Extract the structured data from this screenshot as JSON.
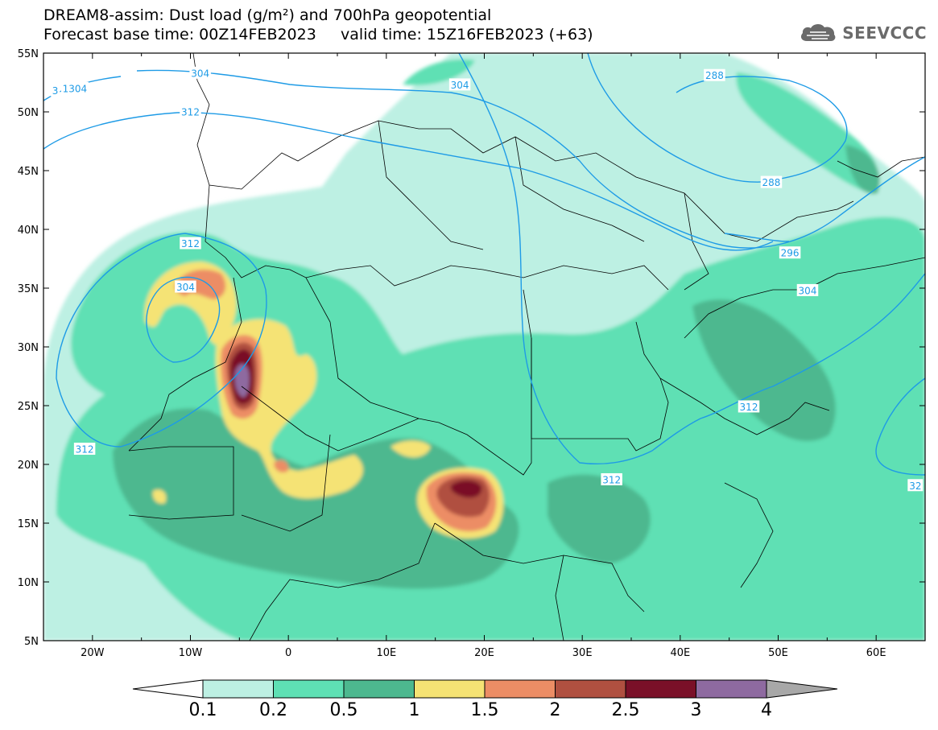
{
  "title": {
    "line1": "DREAM8-assim: Dust load (g/m²) and 700hPa geopotential",
    "line2": "Forecast base time: 00Z14FEB2023     valid time: 15Z16FEB2023 (+63)"
  },
  "logo": {
    "text": "SEEVCCC",
    "icon": "cloud-icon"
  },
  "axes": {
    "lon_range": [
      -25,
      65
    ],
    "lat_range": [
      5,
      55
    ],
    "x_ticks": [
      {
        "value": -20,
        "label": "20W"
      },
      {
        "value": -10,
        "label": "10W"
      },
      {
        "value": 0,
        "label": "0"
      },
      {
        "value": 10,
        "label": "10E"
      },
      {
        "value": 20,
        "label": "20E"
      },
      {
        "value": 30,
        "label": "30E"
      },
      {
        "value": 40,
        "label": "40E"
      },
      {
        "value": 50,
        "label": "50E"
      },
      {
        "value": 60,
        "label": "60E"
      }
    ],
    "y_ticks": [
      {
        "value": 55,
        "label": "55N"
      },
      {
        "value": 50,
        "label": "50N"
      },
      {
        "value": 45,
        "label": "45N"
      },
      {
        "value": 40,
        "label": "40N"
      },
      {
        "value": 35,
        "label": "35N"
      },
      {
        "value": 30,
        "label": "30N"
      },
      {
        "value": 25,
        "label": "25N"
      },
      {
        "value": 20,
        "label": "20N"
      },
      {
        "value": 15,
        "label": "15N"
      },
      {
        "value": 10,
        "label": "10N"
      },
      {
        "value": 5,
        "label": "5N"
      }
    ]
  },
  "colorbar": {
    "levels": [
      "0.1",
      "0.2",
      "0.5",
      "1",
      "1.5",
      "2",
      "2.5",
      "3",
      "4"
    ],
    "colors": [
      "#bdf0e3",
      "#5ee0b4",
      "#4db88f",
      "#f5e374",
      "#ec8d65",
      "#b05040",
      "#7a1028",
      "#8e6aa0"
    ],
    "under_color": "#ffffff",
    "over_color": "#a8a8a8"
  },
  "contour_color": "#1e9be6",
  "contour_labels": [
    {
      "text": "304",
      "lon": -9,
      "lat": 53.3
    },
    {
      "text": "304",
      "lon": 17.5,
      "lat": 52.3
    },
    {
      "text": "3",
      "lon": -23.8,
      "lat": 51.8
    },
    {
      "text": "1304",
      "lon": -21.8,
      "lat": 52.0
    },
    {
      "text": "312",
      "lon": -10,
      "lat": 50.0
    },
    {
      "text": "288",
      "lon": 43.5,
      "lat": 53.1
    },
    {
      "text": "288",
      "lon": 49.3,
      "lat": 44.0
    },
    {
      "text": "296",
      "lon": 51.2,
      "lat": 38.0
    },
    {
      "text": "304",
      "lon": 53.0,
      "lat": 34.8
    },
    {
      "text": "312",
      "lon": -10.0,
      "lat": 38.8
    },
    {
      "text": "304",
      "lon": -10.5,
      "lat": 35.1
    },
    {
      "text": "312",
      "lon": 47.0,
      "lat": 24.9
    },
    {
      "text": "312",
      "lon": 33.0,
      "lat": 18.7
    },
    {
      "text": "312",
      "lon": -20.8,
      "lat": 21.3
    },
    {
      "text": "32",
      "lon": 64.0,
      "lat": 18.2
    }
  ]
}
